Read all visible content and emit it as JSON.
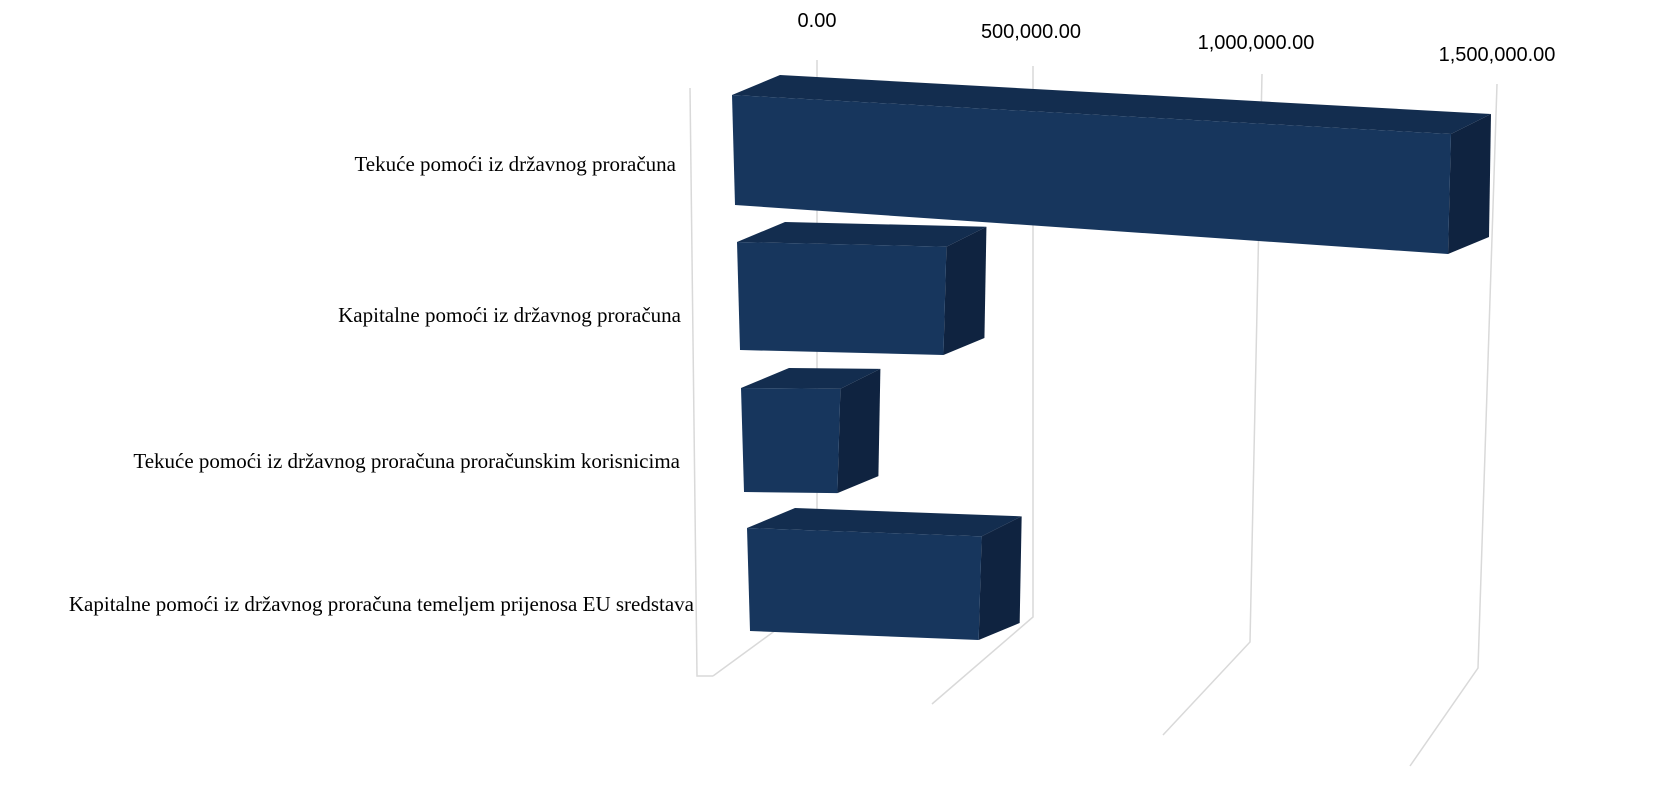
{
  "chart_data": {
    "type": "bar",
    "orientation": "horizontal",
    "style": "3d",
    "title": "",
    "xlabel": "",
    "ylabel": "",
    "categories": [
      "Tekuće pomoći iz državnog proračuna",
      "Kapitalne pomoći iz državnog proračuna",
      "Tekuće pomoći iz državnog proračuna proračunskim korisnicima",
      "Kapitalne pomoći iz državnog proračuna temeljem prijenosa EU sredstava"
    ],
    "values": [
      1500000,
      440000,
      210000,
      500000
    ],
    "xlim": [
      0,
      1500000
    ],
    "x_tick_labels": [
      "0.00",
      "500,000.00",
      "1,000,000.00",
      "1,500,000.00"
    ],
    "x_ticks": [
      0,
      500000,
      1000000,
      1500000
    ],
    "grid": true,
    "legend": "none",
    "colors": {
      "bar_front": "#17365d",
      "bar_top": "#132d4f",
      "bar_side": "#0f2340",
      "grid": "#d9d9d9",
      "text": "#000000"
    }
  }
}
